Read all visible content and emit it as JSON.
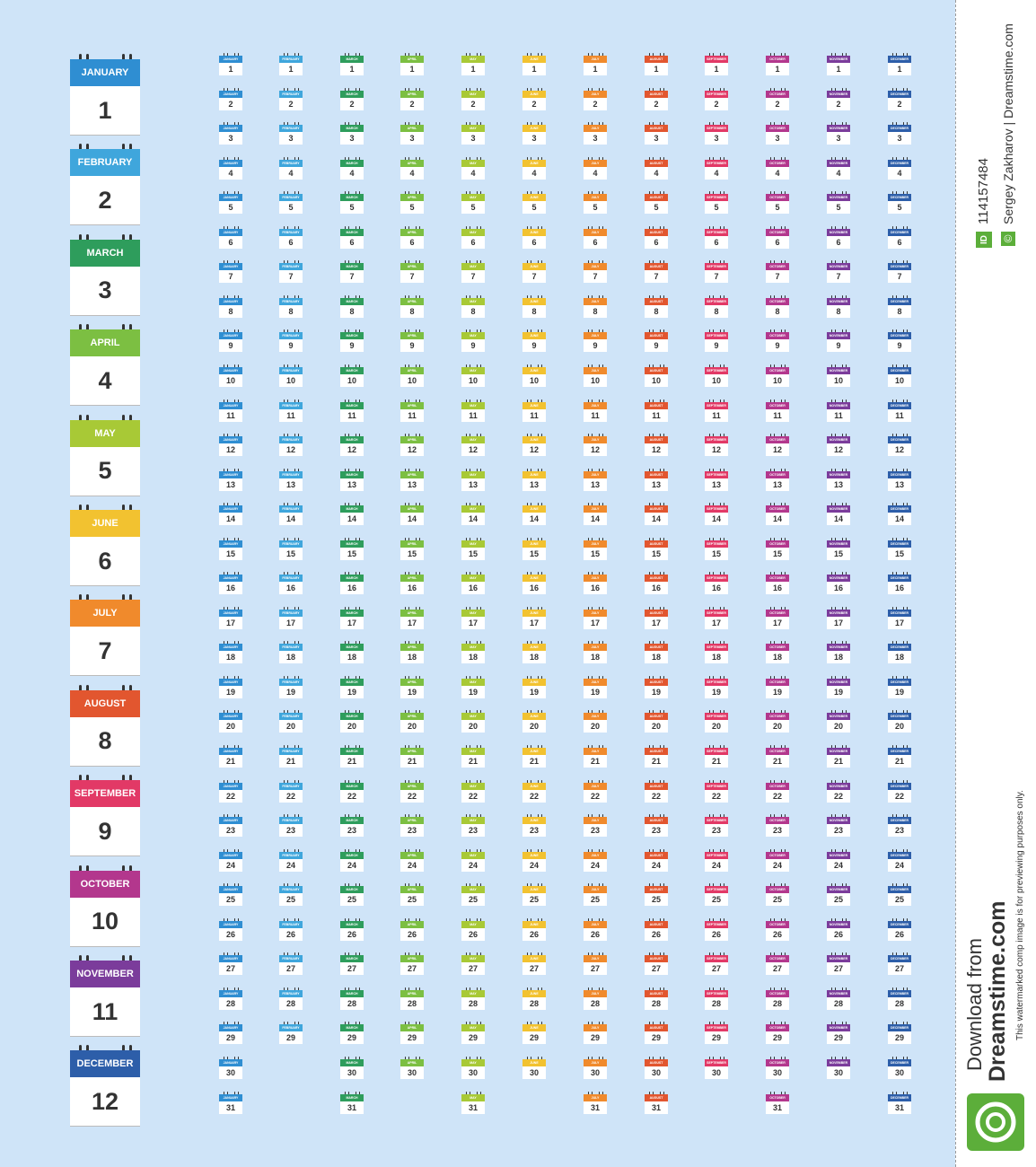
{
  "months": [
    {
      "name": "JANUARY",
      "number": 1,
      "color": "#2f8ed2",
      "days": [
        1,
        2,
        3,
        4,
        5,
        6,
        7,
        8,
        9,
        10,
        11,
        12,
        13,
        14,
        15,
        16,
        17,
        18,
        19,
        20,
        21,
        22,
        23,
        24,
        25,
        26,
        27,
        28,
        29,
        30,
        31
      ]
    },
    {
      "name": "FEBRUARY",
      "number": 2,
      "color": "#3fa6dc",
      "days": [
        1,
        2,
        3,
        4,
        5,
        6,
        7,
        8,
        9,
        10,
        11,
        12,
        13,
        14,
        15,
        16,
        17,
        18,
        19,
        20,
        21,
        22,
        23,
        24,
        25,
        26,
        27,
        28,
        29
      ]
    },
    {
      "name": "MARCH",
      "number": 3,
      "color": "#2e9d5c",
      "days": [
        1,
        2,
        3,
        4,
        5,
        6,
        7,
        8,
        9,
        10,
        11,
        12,
        13,
        14,
        15,
        16,
        17,
        18,
        19,
        20,
        21,
        22,
        23,
        24,
        25,
        26,
        27,
        28,
        29,
        30,
        31
      ]
    },
    {
      "name": "APRIL",
      "number": 4,
      "color": "#7cbf42",
      "days": [
        1,
        2,
        3,
        4,
        5,
        6,
        7,
        8,
        9,
        10,
        11,
        12,
        13,
        14,
        15,
        16,
        17,
        18,
        19,
        20,
        21,
        22,
        23,
        24,
        25,
        26,
        27,
        28,
        29,
        30
      ]
    },
    {
      "name": "MAY",
      "number": 5,
      "color": "#a8c936",
      "days": [
        1,
        2,
        3,
        4,
        5,
        6,
        7,
        8,
        9,
        10,
        11,
        12,
        13,
        14,
        15,
        16,
        17,
        18,
        19,
        20,
        21,
        22,
        23,
        24,
        25,
        26,
        27,
        28,
        29,
        30,
        31
      ]
    },
    {
      "name": "JUNE",
      "number": 6,
      "color": "#f2c230",
      "days": [
        1,
        2,
        3,
        4,
        5,
        6,
        7,
        8,
        9,
        10,
        11,
        12,
        13,
        14,
        15,
        16,
        17,
        18,
        19,
        20,
        21,
        22,
        23,
        24,
        25,
        26,
        27,
        28,
        29,
        30
      ]
    },
    {
      "name": "JULY",
      "number": 7,
      "color": "#f08a2c",
      "days": [
        1,
        2,
        3,
        4,
        5,
        6,
        7,
        8,
        9,
        10,
        11,
        12,
        13,
        14,
        15,
        16,
        17,
        18,
        19,
        20,
        21,
        22,
        23,
        24,
        25,
        26,
        27,
        28,
        29,
        30,
        31
      ]
    },
    {
      "name": "AUGUST",
      "number": 8,
      "color": "#e2562f",
      "days": [
        1,
        2,
        3,
        4,
        5,
        6,
        7,
        8,
        9,
        10,
        11,
        12,
        13,
        14,
        15,
        16,
        17,
        18,
        19,
        20,
        21,
        22,
        23,
        24,
        25,
        26,
        27,
        28,
        29,
        30,
        31
      ]
    },
    {
      "name": "SEPTEMBER",
      "number": 9,
      "color": "#e23966",
      "days": [
        1,
        2,
        3,
        4,
        5,
        6,
        7,
        8,
        9,
        10,
        11,
        12,
        13,
        14,
        15,
        16,
        17,
        18,
        19,
        20,
        21,
        22,
        23,
        24,
        25,
        26,
        27,
        28,
        29,
        30
      ]
    },
    {
      "name": "OCTOBER",
      "number": 10,
      "color": "#b3378d",
      "days": [
        1,
        2,
        3,
        4,
        5,
        6,
        7,
        8,
        9,
        10,
        11,
        12,
        13,
        14,
        15,
        16,
        17,
        18,
        19,
        20,
        21,
        22,
        23,
        24,
        25,
        26,
        27,
        28,
        29,
        30,
        31
      ]
    },
    {
      "name": "NOVEMBER",
      "number": 11,
      "color": "#7b3c9b",
      "days": [
        1,
        2,
        3,
        4,
        5,
        6,
        7,
        8,
        9,
        10,
        11,
        12,
        13,
        14,
        15,
        16,
        17,
        18,
        19,
        20,
        21,
        22,
        23,
        24,
        25,
        26,
        27,
        28,
        29,
        30
      ]
    },
    {
      "name": "DECEMBER",
      "number": 12,
      "color": "#2d5ea9",
      "days": [
        1,
        2,
        3,
        4,
        5,
        6,
        7,
        8,
        9,
        10,
        11,
        12,
        13,
        14,
        15,
        16,
        17,
        18,
        19,
        20,
        21,
        22,
        23,
        24,
        25,
        26,
        27,
        28,
        29,
        30,
        31
      ]
    }
  ],
  "watermark": {
    "id_badge": "ID",
    "id": "114157484",
    "copyright": "©",
    "author": "Sergey Zakharov | Dreamstime.com",
    "download": "Download from",
    "site": "Dreamstime.com",
    "note": "This watermarked comp image is for previewing purposes only."
  }
}
